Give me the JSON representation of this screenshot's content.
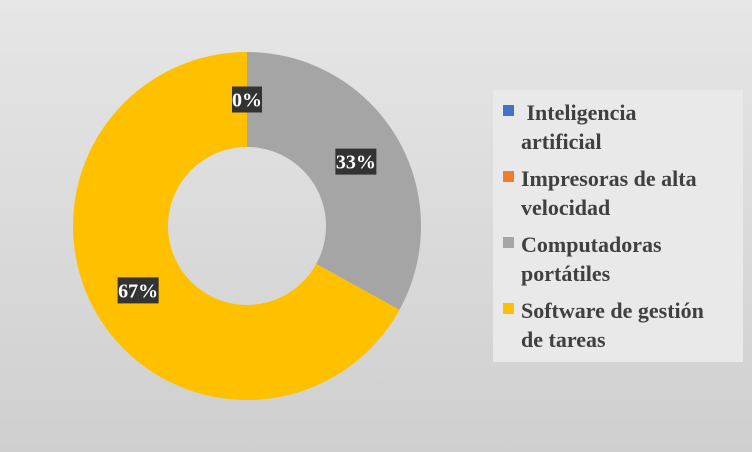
{
  "chart_data": {
    "type": "donut",
    "categories": [
      "Inteligencia artificial",
      "Impresoras de alta velocidad",
      "Computadoras portátiles",
      "Software de gestión de tareas"
    ],
    "values": [
      0,
      0,
      33,
      67
    ],
    "labels": [
      "0%",
      "",
      "33%",
      "67%"
    ],
    "colors": [
      "#4472c4",
      "#ed7d31",
      "#a5a5a5",
      "#ffc000"
    ],
    "legend_position": "right",
    "legend": [
      {
        "label": " Inteligencia\nartificial",
        "color": "#4472c4"
      },
      {
        "label": "Impresoras de alta\nvelocidad",
        "color": "#ed7d31"
      },
      {
        "label": "Computadoras\nportátiles",
        "color": "#a5a5a5"
      },
      {
        "label": "Software de gestión\nde tareas",
        "color": "#ffc000"
      }
    ]
  }
}
